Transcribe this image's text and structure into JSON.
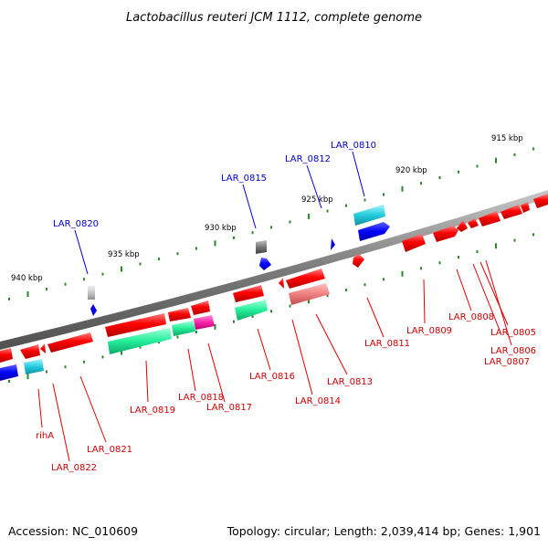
{
  "title": "Lactobacillus reuteri JCM 1112, complete genome",
  "footer": {
    "accession": "Accession: NC_010609",
    "stats": "Topology: circular; Length: 2,039,414 bp; Genes: 1,901"
  },
  "scale_ticks": [
    "940 kbp",
    "935 kbp",
    "930 kbp",
    "925 kbp",
    "920 kbp",
    "915 kbp"
  ],
  "gene_labels": {
    "lar_0820": "LAR_0820",
    "lar_0815": "LAR_0815",
    "lar_0812": "LAR_0812",
    "lar_0810": "LAR_0810",
    "riha": "rihA",
    "lar_0822": "LAR_0822",
    "lar_0821": "LAR_0821",
    "lar_0819": "LAR_0819",
    "lar_0818": "LAR_0818",
    "lar_0817": "LAR_0817",
    "lar_0816": "LAR_0816",
    "lar_0814": "LAR_0814",
    "lar_0813": "LAR_0813",
    "lar_0811": "LAR_0811",
    "lar_0809": "LAR_0809",
    "lar_0808": "LAR_0808",
    "lar_0805": "LAR_0805",
    "lar_0806": "LAR_0806",
    "lar_0807": "LAR_0807"
  },
  "colors": {
    "backbone": "#808080",
    "tick": "#2a8a2a",
    "gene_red": "#ff0000",
    "gene_pink": "#f08080",
    "gene_green": "#22ee99",
    "gene_cyan": "#22ccdd",
    "gene_blue": "#0000ff",
    "gene_magenta": "#ff22aa",
    "gene_gray": "#777777",
    "label_red": "#cc0000",
    "label_blue": "#0000cc"
  }
}
